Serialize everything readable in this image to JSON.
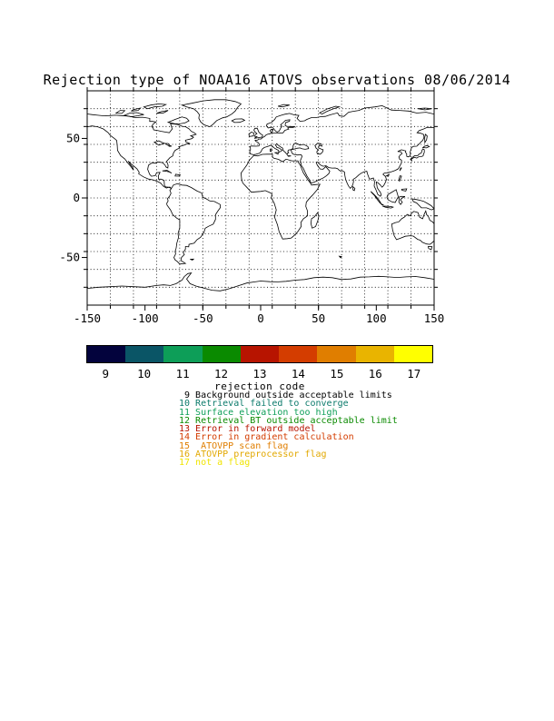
{
  "title": "Rejection type of NOAA16 ATOVS observations 08/06/2014",
  "chart_data": {
    "type": "map",
    "projection": "equirectangular",
    "map_title": "Rejection type of NOAA16 ATOVS observations 08/06/2014",
    "lon_range": [
      -150,
      150
    ],
    "lat_range": [
      -90,
      90
    ],
    "x_ticks": [
      -150,
      -100,
      -50,
      0,
      50,
      100,
      150
    ],
    "y_ticks": [
      50,
      0,
      -50
    ],
    "grid": {
      "lon_step": 20,
      "lat_step": 15,
      "style": "dotted",
      "color": "#000000"
    },
    "observations": [],
    "colorbar": {
      "label": "rejection code",
      "codes": [
        9,
        10,
        11,
        12,
        13,
        14,
        15,
        16,
        17
      ],
      "colors": [
        "#03033d",
        "#0a5566",
        "#0d9e58",
        "#0a8a00",
        "#b71400",
        "#d43d00",
        "#e07e00",
        "#e9b400",
        "#ffff00"
      ]
    },
    "legend": [
      {
        "code": 9,
        "text": "Background outside acceptable limits",
        "color": "#000000"
      },
      {
        "code": 10,
        "text": "Retrieval failed to converge",
        "color": "#0b7a6b"
      },
      {
        "code": 11,
        "text": "Surface elevation too high",
        "color": "#0d9e58"
      },
      {
        "code": 12,
        "text": "Retrieval BT outside acceptable limit",
        "color": "#0a8a00"
      },
      {
        "code": 13,
        "text": "Error in forward model",
        "color": "#b71400"
      },
      {
        "code": 14,
        "text": "Error in gradient calculation",
        "color": "#d43d00"
      },
      {
        "code": 15,
        "text": " ATOVPP scan flag",
        "color": "#e07e00"
      },
      {
        "code": 16,
        "text": "ATOVPP preprocessor flag",
        "color": "#e2a800"
      },
      {
        "code": 17,
        "text": "not a flag",
        "color": "#f0e400"
      }
    ]
  }
}
